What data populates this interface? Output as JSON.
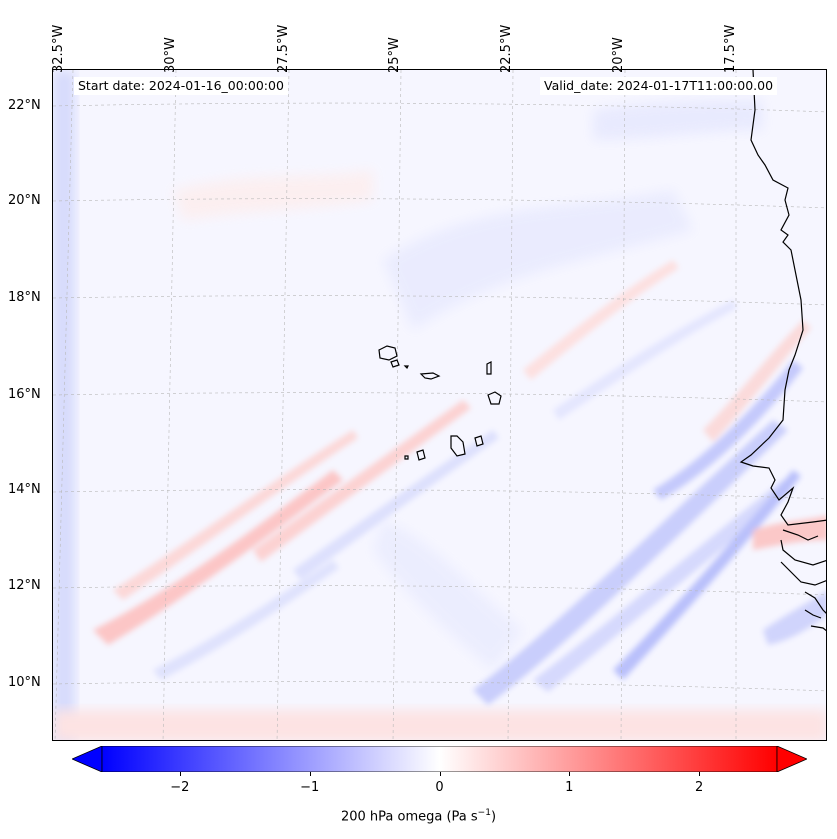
{
  "header": {
    "start_date": "Start date: 2024-01-16_00:00:00",
    "valid_date": "Valid_date: 2024-01-17T11:00:00.00"
  },
  "axes": {
    "lat_labels": [
      "22°N",
      "20°N",
      "18°N",
      "16°N",
      "14°N",
      "12°N",
      "10°N"
    ],
    "lon_labels": [
      "32.5°W",
      "30°W",
      "27.5°W",
      "25°W",
      "22.5°W",
      "20°W",
      "17.5°W"
    ]
  },
  "colorbar": {
    "ticks": [
      "−2",
      "−1",
      "0",
      "1",
      "2"
    ],
    "tick_values": [
      -2,
      -1,
      0,
      1,
      2
    ],
    "range": [
      -2.6,
      2.6
    ],
    "label": "200 hPa omega (Pa s",
    "label_sup": "−1",
    "label_end": ")",
    "min_color": "#0000ff",
    "mid_color": "#ffffff",
    "max_color": "#ff0000",
    "extend": "both"
  },
  "map": {
    "grid": true,
    "coastline_color": "#000000"
  }
}
